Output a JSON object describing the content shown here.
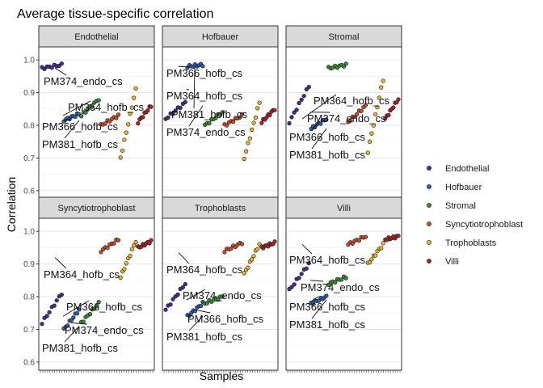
{
  "chart_data": {
    "type": "scatter",
    "title": "Average tissue-specific correlation",
    "xlabel": "Samples",
    "ylabel": "Correlation",
    "ylim": [
      0.575,
      1.04
    ],
    "y_ticks": [
      0.6,
      0.7,
      0.8,
      0.9,
      1.0
    ],
    "y_tick_labels": [
      "0.6",
      "0.7",
      "0.8",
      "0.9",
      "1.0"
    ],
    "grid": true,
    "legend_position": "right",
    "legend": [
      {
        "name": "Endothelial",
        "color": "#4a2d8a"
      },
      {
        "name": "Hofbauer",
        "color": "#2e5ea6"
      },
      {
        "name": "Stromal",
        "color": "#3f8a3a"
      },
      {
        "name": "Syncytiotrophoblast",
        "color": "#c44f2f"
      },
      {
        "name": "Trophoblasts",
        "color": "#e8b33a"
      },
      {
        "name": "Villi",
        "color": "#a8282a"
      }
    ],
    "facets": [
      {
        "title": "Endothelial",
        "groups": [
          {
            "group": "Endothelial",
            "y_start": 0.975,
            "y_end": 0.985
          },
          {
            "group": "Hofbauer",
            "y_start": 0.815,
            "y_end": 0.835
          },
          {
            "group": "Stromal",
            "y_start": 0.83,
            "y_end": 0.88
          },
          {
            "group": "Syncytiotrophoblast",
            "y_start": 0.8,
            "y_end": 0.83
          },
          {
            "group": "Trophoblasts",
            "y_start": 0.7,
            "y_end": 0.91
          },
          {
            "group": "Villi",
            "y_start": 0.81,
            "y_end": 0.86
          }
        ],
        "annotations": [
          {
            "text": "PM374_endo_cs",
            "point_y": 0.975
          },
          {
            "text": "PM364_hofb_cs",
            "point_y": 0.83
          },
          {
            "text": "PM366_hofb_cs",
            "point_y": 0.82
          },
          {
            "text": "PM381_hofb_cs",
            "point_y": 0.815
          }
        ]
      },
      {
        "title": "Hofbauer",
        "groups": [
          {
            "group": "Endothelial",
            "y_start": 0.82,
            "y_end": 0.87
          },
          {
            "group": "Hofbauer",
            "y_start": 0.98,
            "y_end": 0.985
          },
          {
            "group": "Stromal",
            "y_start": 0.8,
            "y_end": 0.84
          },
          {
            "group": "Syncytiotrophoblast",
            "y_start": 0.8,
            "y_end": 0.83
          },
          {
            "group": "Trophoblasts",
            "y_start": 0.7,
            "y_end": 0.87
          },
          {
            "group": "Villi",
            "y_start": 0.81,
            "y_end": 0.85
          }
        ],
        "annotations": [
          {
            "text": "PM366_hofb_cs",
            "point_y": 0.98
          },
          {
            "text": "PM364_hofb_cs",
            "point_y": 0.91
          },
          {
            "text": "PM381_hofb_cs",
            "point_y": 0.975
          },
          {
            "text": "PM374_endo_cs",
            "point_y": 0.86
          }
        ]
      },
      {
        "title": "Stromal",
        "groups": [
          {
            "group": "Endothelial",
            "y_start": 0.81,
            "y_end": 0.92
          },
          {
            "group": "Hofbauer",
            "y_start": 0.79,
            "y_end": 0.82
          },
          {
            "group": "Stromal",
            "y_start": 0.975,
            "y_end": 0.985
          },
          {
            "group": "Syncytiotrophoblast",
            "y_start": 0.81,
            "y_end": 0.86
          },
          {
            "group": "Trophoblasts",
            "y_start": 0.72,
            "y_end": 0.94
          },
          {
            "group": "Villi",
            "y_start": 0.82,
            "y_end": 0.88
          }
        ],
        "annotations": [
          {
            "text": "PM364_hofb_cs",
            "point_y": 0.82
          },
          {
            "text": "PM374_endo_cs",
            "point_y": 0.84
          },
          {
            "text": "PM366_hofb_cs",
            "point_y": 0.81
          },
          {
            "text": "PM381_hofb_cs",
            "point_y": 0.79
          }
        ]
      },
      {
        "title": "Syncytiotrophoblast",
        "groups": [
          {
            "group": "Endothelial",
            "y_start": 0.72,
            "y_end": 0.81
          },
          {
            "group": "Hofbauer",
            "y_start": 0.7,
            "y_end": 0.76
          },
          {
            "group": "Stromal",
            "y_start": 0.72,
            "y_end": 0.78
          },
          {
            "group": "Syncytiotrophoblast",
            "y_start": 0.94,
            "y_end": 0.975
          },
          {
            "group": "Trophoblasts",
            "y_start": 0.86,
            "y_end": 0.97
          },
          {
            "group": "Villi",
            "y_start": 0.95,
            "y_end": 0.97
          }
        ],
        "annotations": [
          {
            "text": "PM364_hofb_cs",
            "point_y": 0.92
          },
          {
            "text": "PM366_hofb_cs",
            "point_y": 0.74
          },
          {
            "text": "PM374_endo_cs",
            "point_y": 0.72
          },
          {
            "text": "PM381_hofb_cs",
            "point_y": 0.71
          }
        ]
      },
      {
        "title": "Trophoblasts",
        "groups": [
          {
            "group": "Endothelial",
            "y_start": 0.76,
            "y_end": 0.84
          },
          {
            "group": "Hofbauer",
            "y_start": 0.74,
            "y_end": 0.78
          },
          {
            "group": "Stromal",
            "y_start": 0.78,
            "y_end": 0.8
          },
          {
            "group": "Syncytiotrophoblast",
            "y_start": 0.94,
            "y_end": 0.965
          },
          {
            "group": "Trophoblasts",
            "y_start": 0.87,
            "y_end": 0.96
          },
          {
            "group": "Villi",
            "y_start": 0.95,
            "y_end": 0.965
          }
        ],
        "annotations": [
          {
            "text": "PM364_hofb_cs",
            "point_y": 0.935
          },
          {
            "text": "PM374_endo_cs",
            "point_y": 0.79
          },
          {
            "text": "PM366_hofb_cs",
            "point_y": 0.76
          },
          {
            "text": "PM381_hofb_cs",
            "point_y": 0.74
          }
        ]
      },
      {
        "title": "Villi",
        "groups": [
          {
            "group": "Endothelial",
            "y_start": 0.82,
            "y_end": 0.9
          },
          {
            "group": "Hofbauer",
            "y_start": 0.78,
            "y_end": 0.8
          },
          {
            "group": "Stromal",
            "y_start": 0.84,
            "y_end": 0.86
          },
          {
            "group": "Syncytiotrophoblast",
            "y_start": 0.96,
            "y_end": 0.985
          },
          {
            "group": "Trophoblasts",
            "y_start": 0.9,
            "y_end": 0.96
          },
          {
            "group": "Villi",
            "y_start": 0.975,
            "y_end": 0.985
          }
        ],
        "annotations": [
          {
            "text": "PM364_hofb_cs",
            "point_y": 0.96
          },
          {
            "text": "PM374_endo_cs",
            "point_y": 0.85
          },
          {
            "text": "PM366_hofb_cs",
            "point_y": 0.8
          },
          {
            "text": "PM381_hofb_cs",
            "point_y": 0.79
          }
        ]
      }
    ]
  }
}
